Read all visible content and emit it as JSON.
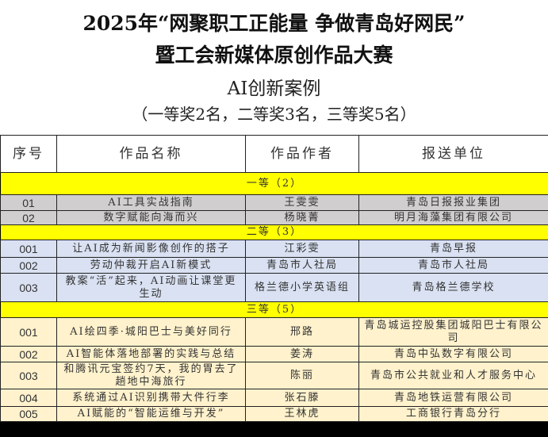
{
  "title": {
    "line1": "2025年“网聚职工正能量 争做青岛好网民”",
    "line2": "暨工会新媒体原创作品大赛",
    "category": "AI创新案例",
    "quota": "（一等奖2名，二等奖3名，三等奖5名）"
  },
  "headers": [
    "序号",
    "作品名称",
    "作品作者",
    "报送单位"
  ],
  "sections": [
    {
      "label": "一等（2）",
      "rows": [
        {
          "no": "01",
          "work": "AI工具实战指南",
          "author": "王雯雯",
          "unit": "青岛日报报业集团"
        },
        {
          "no": "02",
          "work": "数字赋能向海而兴",
          "author": "杨晓菁",
          "unit": "明月海藻集团有限公司"
        }
      ]
    },
    {
      "label": "二等（3）",
      "rows": [
        {
          "no": "001",
          "work": "让AI成为新闻影像创作的搭子",
          "author": "江彩雯",
          "unit": "青岛早报"
        },
        {
          "no": "002",
          "work": "劳动仲裁开启AI新模式",
          "author": "青岛市人社局",
          "unit": "青岛市人社局"
        },
        {
          "no": "003",
          "work": "教案“活”起来，AI动画让课堂更生动",
          "author": "格兰德小学英语组",
          "unit": "青岛格兰德学校"
        }
      ]
    },
    {
      "label": "三等（5）",
      "rows": [
        {
          "no": "001",
          "work": "AI绘四季·城阳巴士与美好同行",
          "author": "邢路",
          "unit": "青岛城运控股集团城阳巴士有限公司"
        },
        {
          "no": "002",
          "work": "AI智能体落地部署的实践与总结",
          "author": "姜涛",
          "unit": "青岛中弘数字有限公司"
        },
        {
          "no": "003",
          "work": "和腾讯元宝签约7天，我的胃去了趟地中海旅行",
          "author": "陈丽",
          "unit": "青岛市公共就业和人才服务中心"
        },
        {
          "no": "004",
          "work": "系统通过AI识别携带大件行李",
          "author": "张石滕",
          "unit": "青岛地铁运营有限公司"
        },
        {
          "no": "005",
          "work": "AI赋能的“智能运维与开发”",
          "author": "王林虎",
          "unit": "工商银行青岛分行"
        }
      ]
    }
  ]
}
